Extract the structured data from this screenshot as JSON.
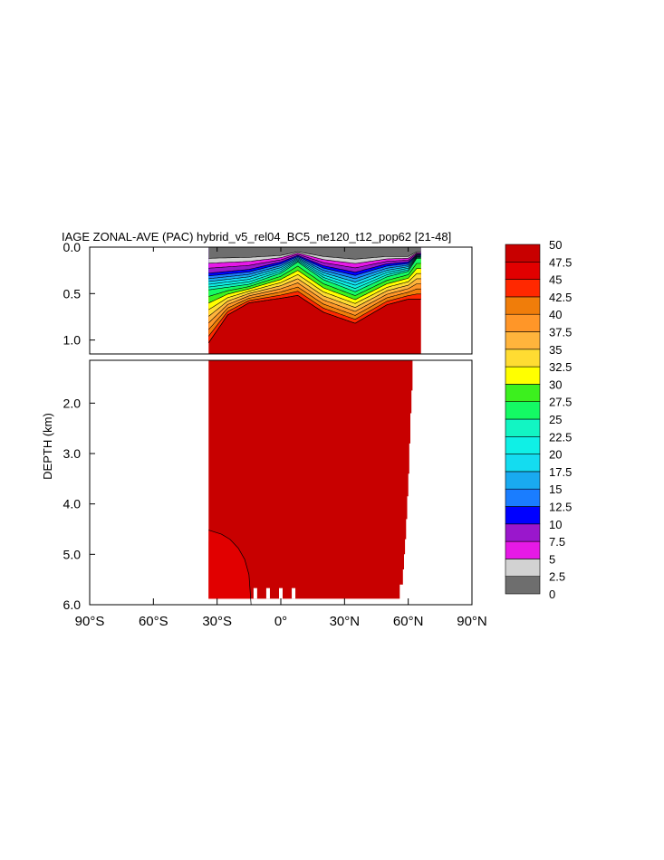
{
  "chart_data": {
    "type": "heatmap",
    "title": "IAGE ZONAL-AVE (PAC) hybrid_v5_rel04_BC5_ne120_t12_pop62 [21-48]",
    "ylabel": "DEPTH (km)",
    "xlabel": "",
    "xlim": [
      -90,
      90
    ],
    "upper_panel": {
      "ylim": [
        0.0,
        1.15
      ],
      "yticks": [
        0.0,
        0.5,
        1.0
      ],
      "yticklabels": [
        "0.0",
        "0.5",
        "1.0"
      ]
    },
    "lower_panel": {
      "ylim": [
        1.15,
        6.0
      ],
      "yticks": [
        2.0,
        3.0,
        4.0,
        5.0,
        6.0
      ],
      "yticklabels": [
        "2.0",
        "3.0",
        "4.0",
        "5.0",
        "6.0"
      ]
    },
    "x_ticks": [
      {
        "value": -90,
        "label": "90°S"
      },
      {
        "value": -60,
        "label": "60°S"
      },
      {
        "value": -30,
        "label": "30°S"
      },
      {
        "value": 0,
        "label": "0°"
      },
      {
        "value": 30,
        "label": "30°N"
      },
      {
        "value": 60,
        "label": "60°N"
      },
      {
        "value": 90,
        "label": "90°N"
      }
    ],
    "colorbar": {
      "levels": [
        "0",
        "2.5",
        "5",
        "7.5",
        "10",
        "12.5",
        "15",
        "17.5",
        "20",
        "22.5",
        "25",
        "27.5",
        "30",
        "32.5",
        "35",
        "37.5",
        "40",
        "42.5",
        "45",
        "47.5",
        "50"
      ],
      "colors": [
        "#6e6e6e",
        "#d2d2d2",
        "#e619e6",
        "#9a17cc",
        "#0000ff",
        "#1a7dff",
        "#19aaf0",
        "#14dcf0",
        "#0ff0e6",
        "#12f5c3",
        "#14fa64",
        "#3cf01e",
        "#ffff00",
        "#ffdc32",
        "#ffb43c",
        "#ff9628",
        "#f07d0a",
        "#ff2800",
        "#e10000",
        "#c80000"
      ]
    },
    "ocean_extent": {
      "lat_south": -34,
      "lat_north": 66,
      "surface_contours": [
        {
          "value": 2.5,
          "depth": [
            [
              -34,
              0.12
            ],
            [
              -15,
              0.11
            ],
            [
              0,
              0.09
            ],
            [
              8,
              0.05
            ],
            [
              20,
              0.1
            ],
            [
              35,
              0.13
            ],
            [
              50,
              0.1
            ],
            [
              60,
              0.1
            ],
            [
              64,
              0.05
            ]
          ]
        },
        {
          "value": 10,
          "depth": [
            [
              -34,
              0.28
            ],
            [
              -15,
              0.24
            ],
            [
              0,
              0.16
            ],
            [
              8,
              0.09
            ],
            [
              20,
              0.2
            ],
            [
              35,
              0.27
            ],
            [
              50,
              0.18
            ],
            [
              60,
              0.16
            ],
            [
              64,
              0.08
            ]
          ]
        },
        {
          "value": 25,
          "depth": [
            [
              -34,
              0.46
            ],
            [
              -15,
              0.4
            ],
            [
              0,
              0.28
            ],
            [
              8,
              0.16
            ],
            [
              20,
              0.35
            ],
            [
              35,
              0.48
            ],
            [
              50,
              0.32
            ],
            [
              60,
              0.26
            ],
            [
              64,
              0.12
            ]
          ]
        },
        {
          "value": 45,
          "depth": [
            [
              -34,
              1.03
            ],
            [
              -25,
              0.73
            ],
            [
              -15,
              0.6
            ],
            [
              0,
              0.55
            ],
            [
              8,
              0.52
            ],
            [
              20,
              0.7
            ],
            [
              35,
              0.82
            ],
            [
              50,
              0.62
            ],
            [
              60,
              0.56
            ]
          ]
        }
      ],
      "bottom_water_boundary_47_5": [
        [
          -34,
          4.52
        ],
        [
          -28,
          4.6
        ],
        [
          -24,
          4.7
        ],
        [
          -20,
          4.88
        ],
        [
          -17,
          5.1
        ],
        [
          -15,
          5.4
        ],
        [
          -14,
          6.0
        ]
      ]
    }
  }
}
